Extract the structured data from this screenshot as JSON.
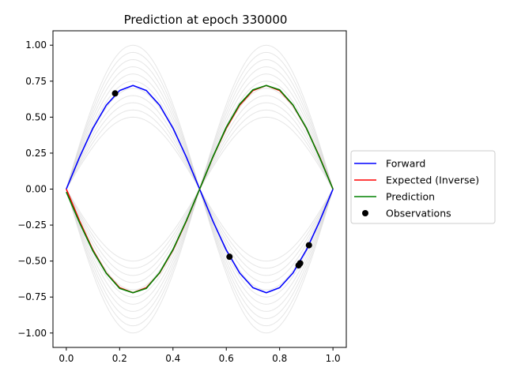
{
  "chart_data": {
    "type": "line",
    "title": "Prediction at epoch 330000",
    "xlabel": "",
    "ylabel": "",
    "xlim": [
      -0.05,
      1.05
    ],
    "ylim": [
      -1.1,
      1.1
    ],
    "xticks": [
      0.0,
      0.2,
      0.4,
      0.6,
      0.8,
      1.0
    ],
    "xtick_labels": [
      "0.0",
      "0.2",
      "0.4",
      "0.6",
      "0.8",
      "1.0"
    ],
    "yticks": [
      -1.0,
      -0.75,
      -0.5,
      -0.25,
      0.0,
      0.25,
      0.5,
      0.75,
      1.0
    ],
    "ytick_labels": [
      "−1.00",
      "−0.75",
      "−0.50",
      "−0.25",
      "0.00",
      "0.25",
      "0.50",
      "0.75",
      "1.00"
    ],
    "grid": false,
    "legend_position": "center-right outside",
    "background_family": {
      "color": "#c8c8c8",
      "amplitudes_positive": [
        0.5,
        0.55,
        0.6,
        0.65,
        0.7,
        0.75,
        0.8,
        0.85,
        0.9,
        0.95,
        1.0
      ],
      "amplitudes_negative": [
        -0.5,
        -0.55,
        -0.6,
        -0.65,
        -0.7,
        -0.75,
        -0.8,
        -0.85,
        -0.9,
        -0.95,
        -1.0
      ]
    },
    "series": [
      {
        "name": "Forward",
        "kind": "line",
        "color": "#0000ff",
        "x": [
          0.0,
          0.05,
          0.1,
          0.15,
          0.2,
          0.25,
          0.3,
          0.35,
          0.4,
          0.45,
          0.5,
          0.55,
          0.6,
          0.65,
          0.7,
          0.75,
          0.8,
          0.85,
          0.9,
          0.95,
          1.0
        ],
        "y": [
          0.0,
          0.223,
          0.424,
          0.583,
          0.685,
          0.72,
          0.685,
          0.583,
          0.424,
          0.223,
          0.0,
          -0.223,
          -0.424,
          -0.583,
          -0.685,
          -0.72,
          -0.685,
          -0.583,
          -0.424,
          -0.223,
          0.0
        ]
      },
      {
        "name": "Expected (Inverse)",
        "kind": "line",
        "color": "#ff0000",
        "x": [
          0.0,
          0.05,
          0.1,
          0.15,
          0.2,
          0.25,
          0.3,
          0.35,
          0.4,
          0.45,
          0.5,
          0.55,
          0.6,
          0.65,
          0.7,
          0.75,
          0.8,
          0.85,
          0.9,
          0.95,
          1.0
        ],
        "y": [
          0.0,
          -0.223,
          -0.424,
          -0.583,
          -0.685,
          -0.72,
          -0.685,
          -0.583,
          -0.424,
          -0.223,
          0.0,
          0.223,
          0.424,
          0.583,
          0.685,
          0.72,
          0.685,
          0.583,
          0.424,
          0.223,
          0.0
        ]
      },
      {
        "name": "Prediction",
        "kind": "line",
        "color": "#008000",
        "x": [
          0.0,
          0.05,
          0.1,
          0.15,
          0.2,
          0.25,
          0.3,
          0.35,
          0.4,
          0.45,
          0.5,
          0.55,
          0.6,
          0.65,
          0.7,
          0.75,
          0.8,
          0.85,
          0.9,
          0.95,
          1.0
        ],
        "y": [
          -0.02,
          -0.235,
          -0.43,
          -0.585,
          -0.69,
          -0.72,
          -0.69,
          -0.58,
          -0.42,
          -0.22,
          0.0,
          0.225,
          0.43,
          0.59,
          0.69,
          0.72,
          0.69,
          0.585,
          0.425,
          0.22,
          0.0
        ]
      },
      {
        "name": "Observations",
        "kind": "scatter",
        "color": "#000000",
        "x": [
          0.183,
          0.612,
          0.871,
          0.877,
          0.91
        ],
        "y": [
          0.665,
          -0.47,
          -0.53,
          -0.515,
          -0.39
        ]
      }
    ]
  }
}
